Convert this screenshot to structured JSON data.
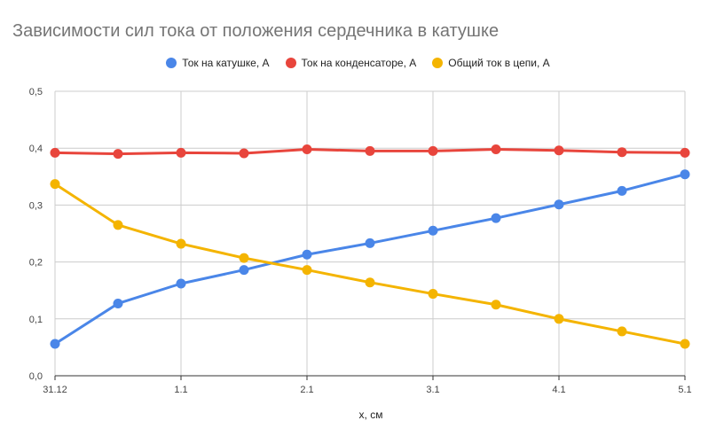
{
  "chart_data": {
    "type": "line",
    "title": "Зависимости сил тока от положения сердечника в катушке",
    "xlabel": "x, см",
    "ylabel": "",
    "x_tick_labels": [
      "31.12",
      "",
      "1.1",
      "",
      "2.1",
      "",
      "3.1",
      "",
      "4.1",
      "",
      "5.1"
    ],
    "y_ticks": [
      "0,0",
      "0,1",
      "0,2",
      "0,3",
      "0,4",
      "0,5"
    ],
    "ylim": [
      0,
      0.5
    ],
    "grid": true,
    "legend_position": "top",
    "series": [
      {
        "name": "Ток на катушке, А",
        "color": "#4a86e8",
        "values": [
          0.056,
          0.127,
          0.162,
          0.186,
          0.213,
          0.233,
          0.255,
          0.277,
          0.301,
          0.325,
          0.354
        ]
      },
      {
        "name": "Ток на конденсаторе, А",
        "color": "#e8453c",
        "values": [
          0.392,
          0.39,
          0.392,
          0.391,
          0.398,
          0.395,
          0.395,
          0.398,
          0.396,
          0.393,
          0.392
        ]
      },
      {
        "name": "Общий ток в цепи, А",
        "color": "#f4b400",
        "values": [
          0.337,
          0.265,
          0.232,
          0.207,
          0.186,
          0.164,
          0.144,
          0.125,
          0.1,
          0.078,
          0.056
        ]
      }
    ]
  }
}
